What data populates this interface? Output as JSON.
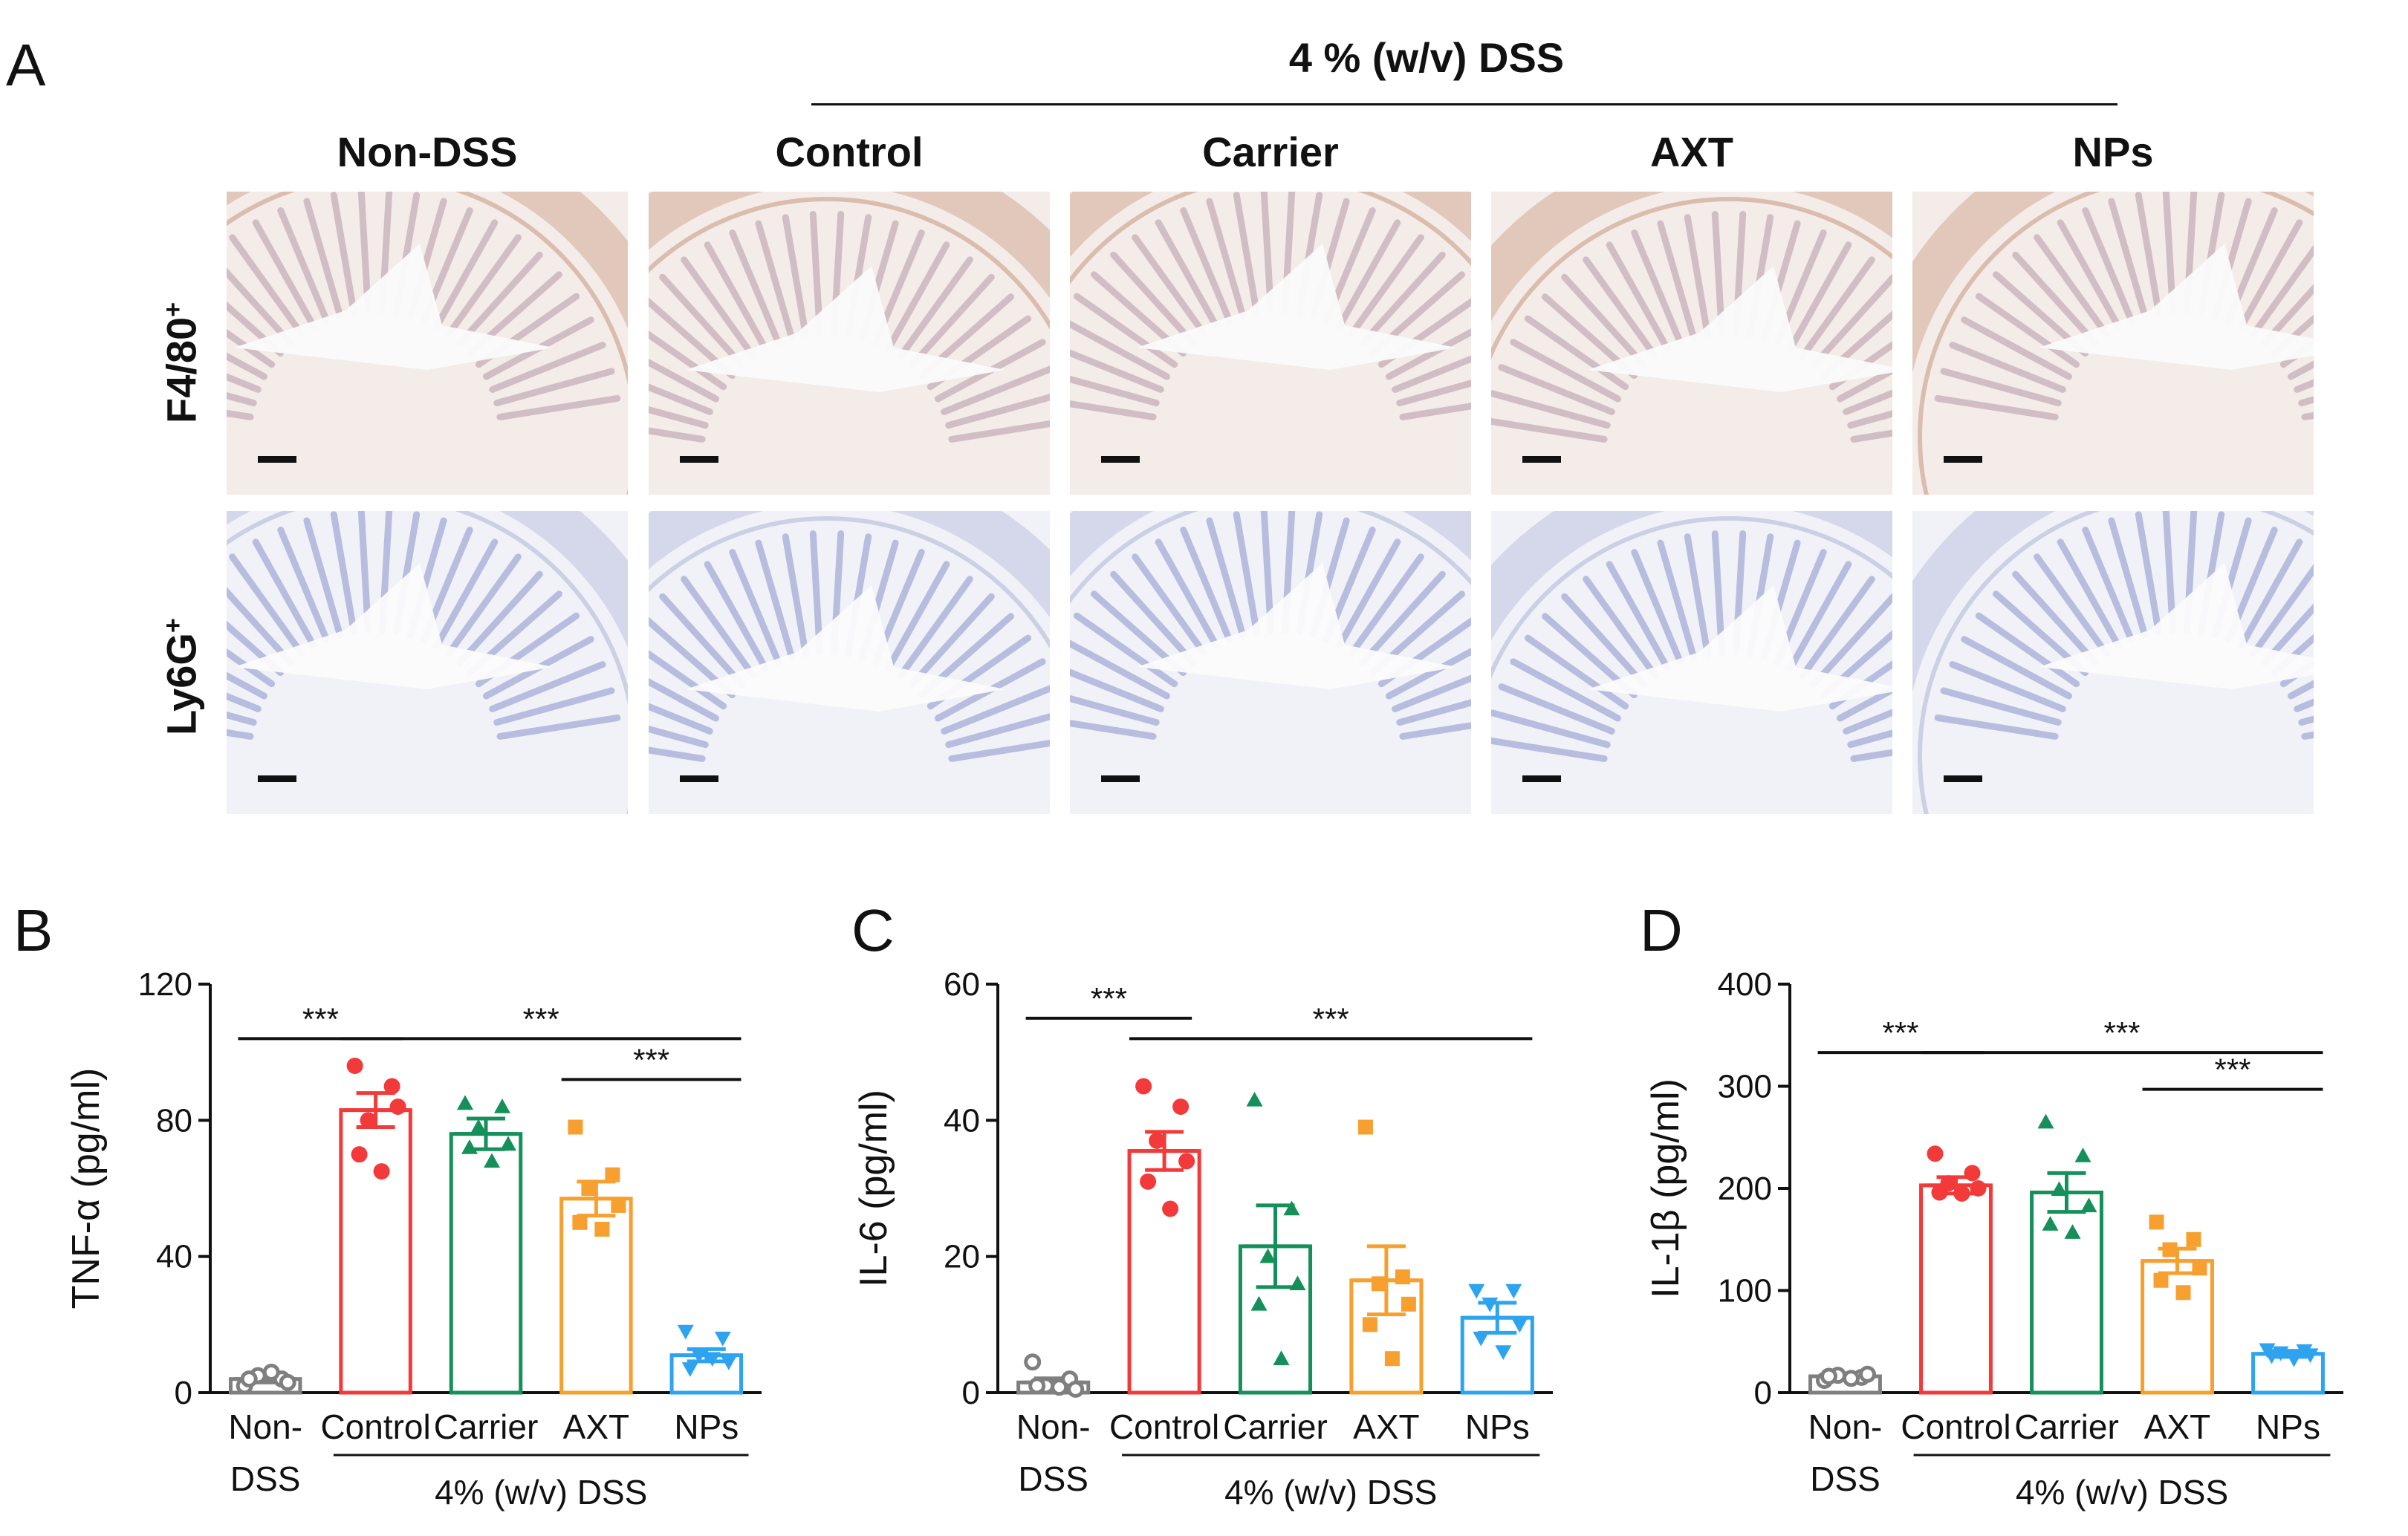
{
  "panel_a": {
    "letter": "A",
    "treatment_header": "4 % (w/v) DSS",
    "columns": [
      "Non-DSS",
      "Control",
      "Carrier",
      "AXT",
      "NPs"
    ],
    "rows": [
      {
        "marker": "F4/80",
        "sup": "+",
        "stain": "brown"
      },
      {
        "marker": "Ly6G",
        "sup": "+",
        "stain": "blue"
      }
    ]
  },
  "colors": {
    "nondss": "#7f7f7f",
    "control": "#f23a3a",
    "carrier": "#15905a",
    "axt": "#f7a030",
    "nps": "#2ea4f0"
  },
  "chart_data": [
    {
      "type": "bar",
      "panel": "B",
      "ylabel": "TNF-α (pg/ml)",
      "ylim": [
        0,
        120
      ],
      "yticks": [
        0,
        40,
        80,
        120
      ],
      "categories": [
        "Non-DSS",
        "Control",
        "Carrier",
        "AXT",
        "NPs"
      ],
      "category_lines": [
        [
          "Non-",
          "DSS"
        ],
        [
          "Control"
        ],
        [
          "Carrier"
        ],
        [
          "AXT"
        ],
        [
          "NPs"
        ]
      ],
      "group_label": "4% (w/v) DSS",
      "markers": [
        "circle-open",
        "circle",
        "triangle",
        "square",
        "triangle-down"
      ],
      "values": [
        4,
        83,
        76,
        57,
        11
      ],
      "errors": [
        1,
        5,
        4.5,
        5,
        1.8
      ],
      "points": [
        [
          2,
          4,
          5,
          3,
          4,
          6
        ],
        [
          96,
          90,
          80,
          84,
          70,
          65
        ],
        [
          85,
          84,
          78,
          73,
          72,
          68
        ],
        [
          78,
          64,
          60,
          55,
          50,
          48
        ],
        [
          18,
          16,
          11,
          9,
          7,
          10
        ]
      ],
      "significance": [
        {
          "from": 0,
          "to": 1,
          "y": 104,
          "label": "***"
        },
        {
          "from": 1,
          "to": 4,
          "y": 104,
          "label": "***"
        },
        {
          "from": 3,
          "to": 4,
          "y": 92,
          "label": "***"
        }
      ]
    },
    {
      "type": "bar",
      "panel": "C",
      "ylabel": "IL-6 (pg/ml)",
      "ylim": [
        0,
        60
      ],
      "yticks": [
        0,
        20,
        40,
        60
      ],
      "categories": [
        "Non-DSS",
        "Control",
        "Carrier",
        "AXT",
        "NPs"
      ],
      "category_lines": [
        [
          "Non-",
          "DSS"
        ],
        [
          "Control"
        ],
        [
          "Carrier"
        ],
        [
          "AXT"
        ],
        [
          "NPs"
        ]
      ],
      "group_label": "4% (w/v) DSS",
      "markers": [
        "circle-open",
        "circle",
        "triangle",
        "square",
        "triangle-down"
      ],
      "values": [
        1.5,
        35.5,
        21.5,
        16.5,
        11
      ],
      "errors": [
        0.6,
        2.8,
        6,
        5,
        2.2
      ],
      "points": [
        [
          4.5,
          2,
          1,
          0.5,
          1,
          0.8
        ],
        [
          45,
          42,
          37,
          34,
          31,
          27
        ],
        [
          43,
          27,
          20,
          16,
          13,
          5
        ],
        [
          39,
          17,
          16,
          13,
          10,
          5
        ],
        [
          15,
          15,
          13,
          10,
          8,
          6
        ]
      ],
      "significance": [
        {
          "from": 0,
          "to": 1,
          "y": 55,
          "label": "***"
        },
        {
          "from": 1,
          "to": 4,
          "y": 52,
          "label": "***"
        }
      ]
    },
    {
      "type": "bar",
      "panel": "D",
      "ylabel": "IL-1β (pg/ml)",
      "ylim": [
        0,
        400
      ],
      "yticks": [
        0,
        100,
        200,
        300,
        400
      ],
      "categories": [
        "Non-DSS",
        "Control",
        "Carrier",
        "AXT",
        "NPs"
      ],
      "category_lines": [
        [
          "Non-",
          "DSS"
        ],
        [
          "Control"
        ],
        [
          "Carrier"
        ],
        [
          "AXT"
        ],
        [
          "NPs"
        ]
      ],
      "group_label": "4% (w/v) DSS",
      "markers": [
        "circle-open",
        "circle",
        "triangle",
        "square",
        "triangle-down"
      ],
      "values": [
        16,
        203,
        196,
        129,
        38
      ],
      "errors": [
        2,
        8,
        19,
        12,
        3
      ],
      "points": [
        [
          12,
          15,
          17,
          18,
          16,
          14
        ],
        [
          234,
          215,
          205,
          200,
          196,
          195
        ],
        [
          265,
          232,
          199,
          183,
          165,
          157
        ],
        [
          167,
          150,
          140,
          122,
          110,
          98
        ],
        [
          42,
          41,
          39,
          37,
          36,
          33
        ]
      ],
      "significance": [
        {
          "from": 0,
          "to": 1,
          "y": 333,
          "label": "***"
        },
        {
          "from": 1,
          "to": 4,
          "y": 333,
          "label": "***"
        },
        {
          "from": 3,
          "to": 4,
          "y": 297,
          "label": "***"
        }
      ]
    }
  ]
}
